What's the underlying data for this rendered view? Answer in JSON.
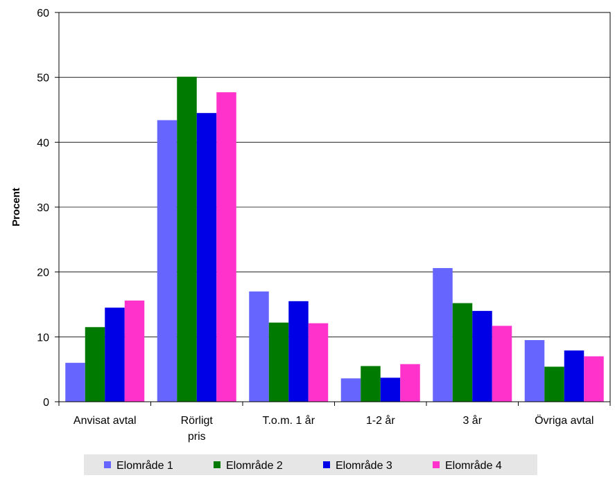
{
  "chart_data": {
    "type": "bar",
    "ylabel": "Procent",
    "ylim": [
      0,
      60
    ],
    "yticks": [
      0,
      10,
      20,
      30,
      40,
      50,
      60
    ],
    "grid": true,
    "legend_position": "bottom",
    "categories": [
      [
        "Anvisat avtal"
      ],
      [
        "Rörligt",
        "pris"
      ],
      [
        "T.o.m. 1 år"
      ],
      [
        "1-2 år"
      ],
      [
        "3 år"
      ],
      [
        "Övriga avtal"
      ]
    ],
    "series": [
      {
        "name": "Elområde 1",
        "color": "#6666FF",
        "values": [
          6.0,
          43.4,
          17.0,
          3.6,
          20.6,
          9.5
        ]
      },
      {
        "name": "Elområde 2",
        "color": "#007A00",
        "values": [
          11.5,
          50.1,
          12.2,
          5.5,
          15.2,
          5.4
        ]
      },
      {
        "name": "Elområde 3",
        "color": "#0000E6",
        "values": [
          14.5,
          44.5,
          15.5,
          3.7,
          14.0,
          7.9
        ]
      },
      {
        "name": "Elområde 4",
        "color": "#FF33CC",
        "values": [
          15.6,
          47.7,
          12.1,
          5.8,
          11.7,
          7.0
        ]
      }
    ]
  }
}
